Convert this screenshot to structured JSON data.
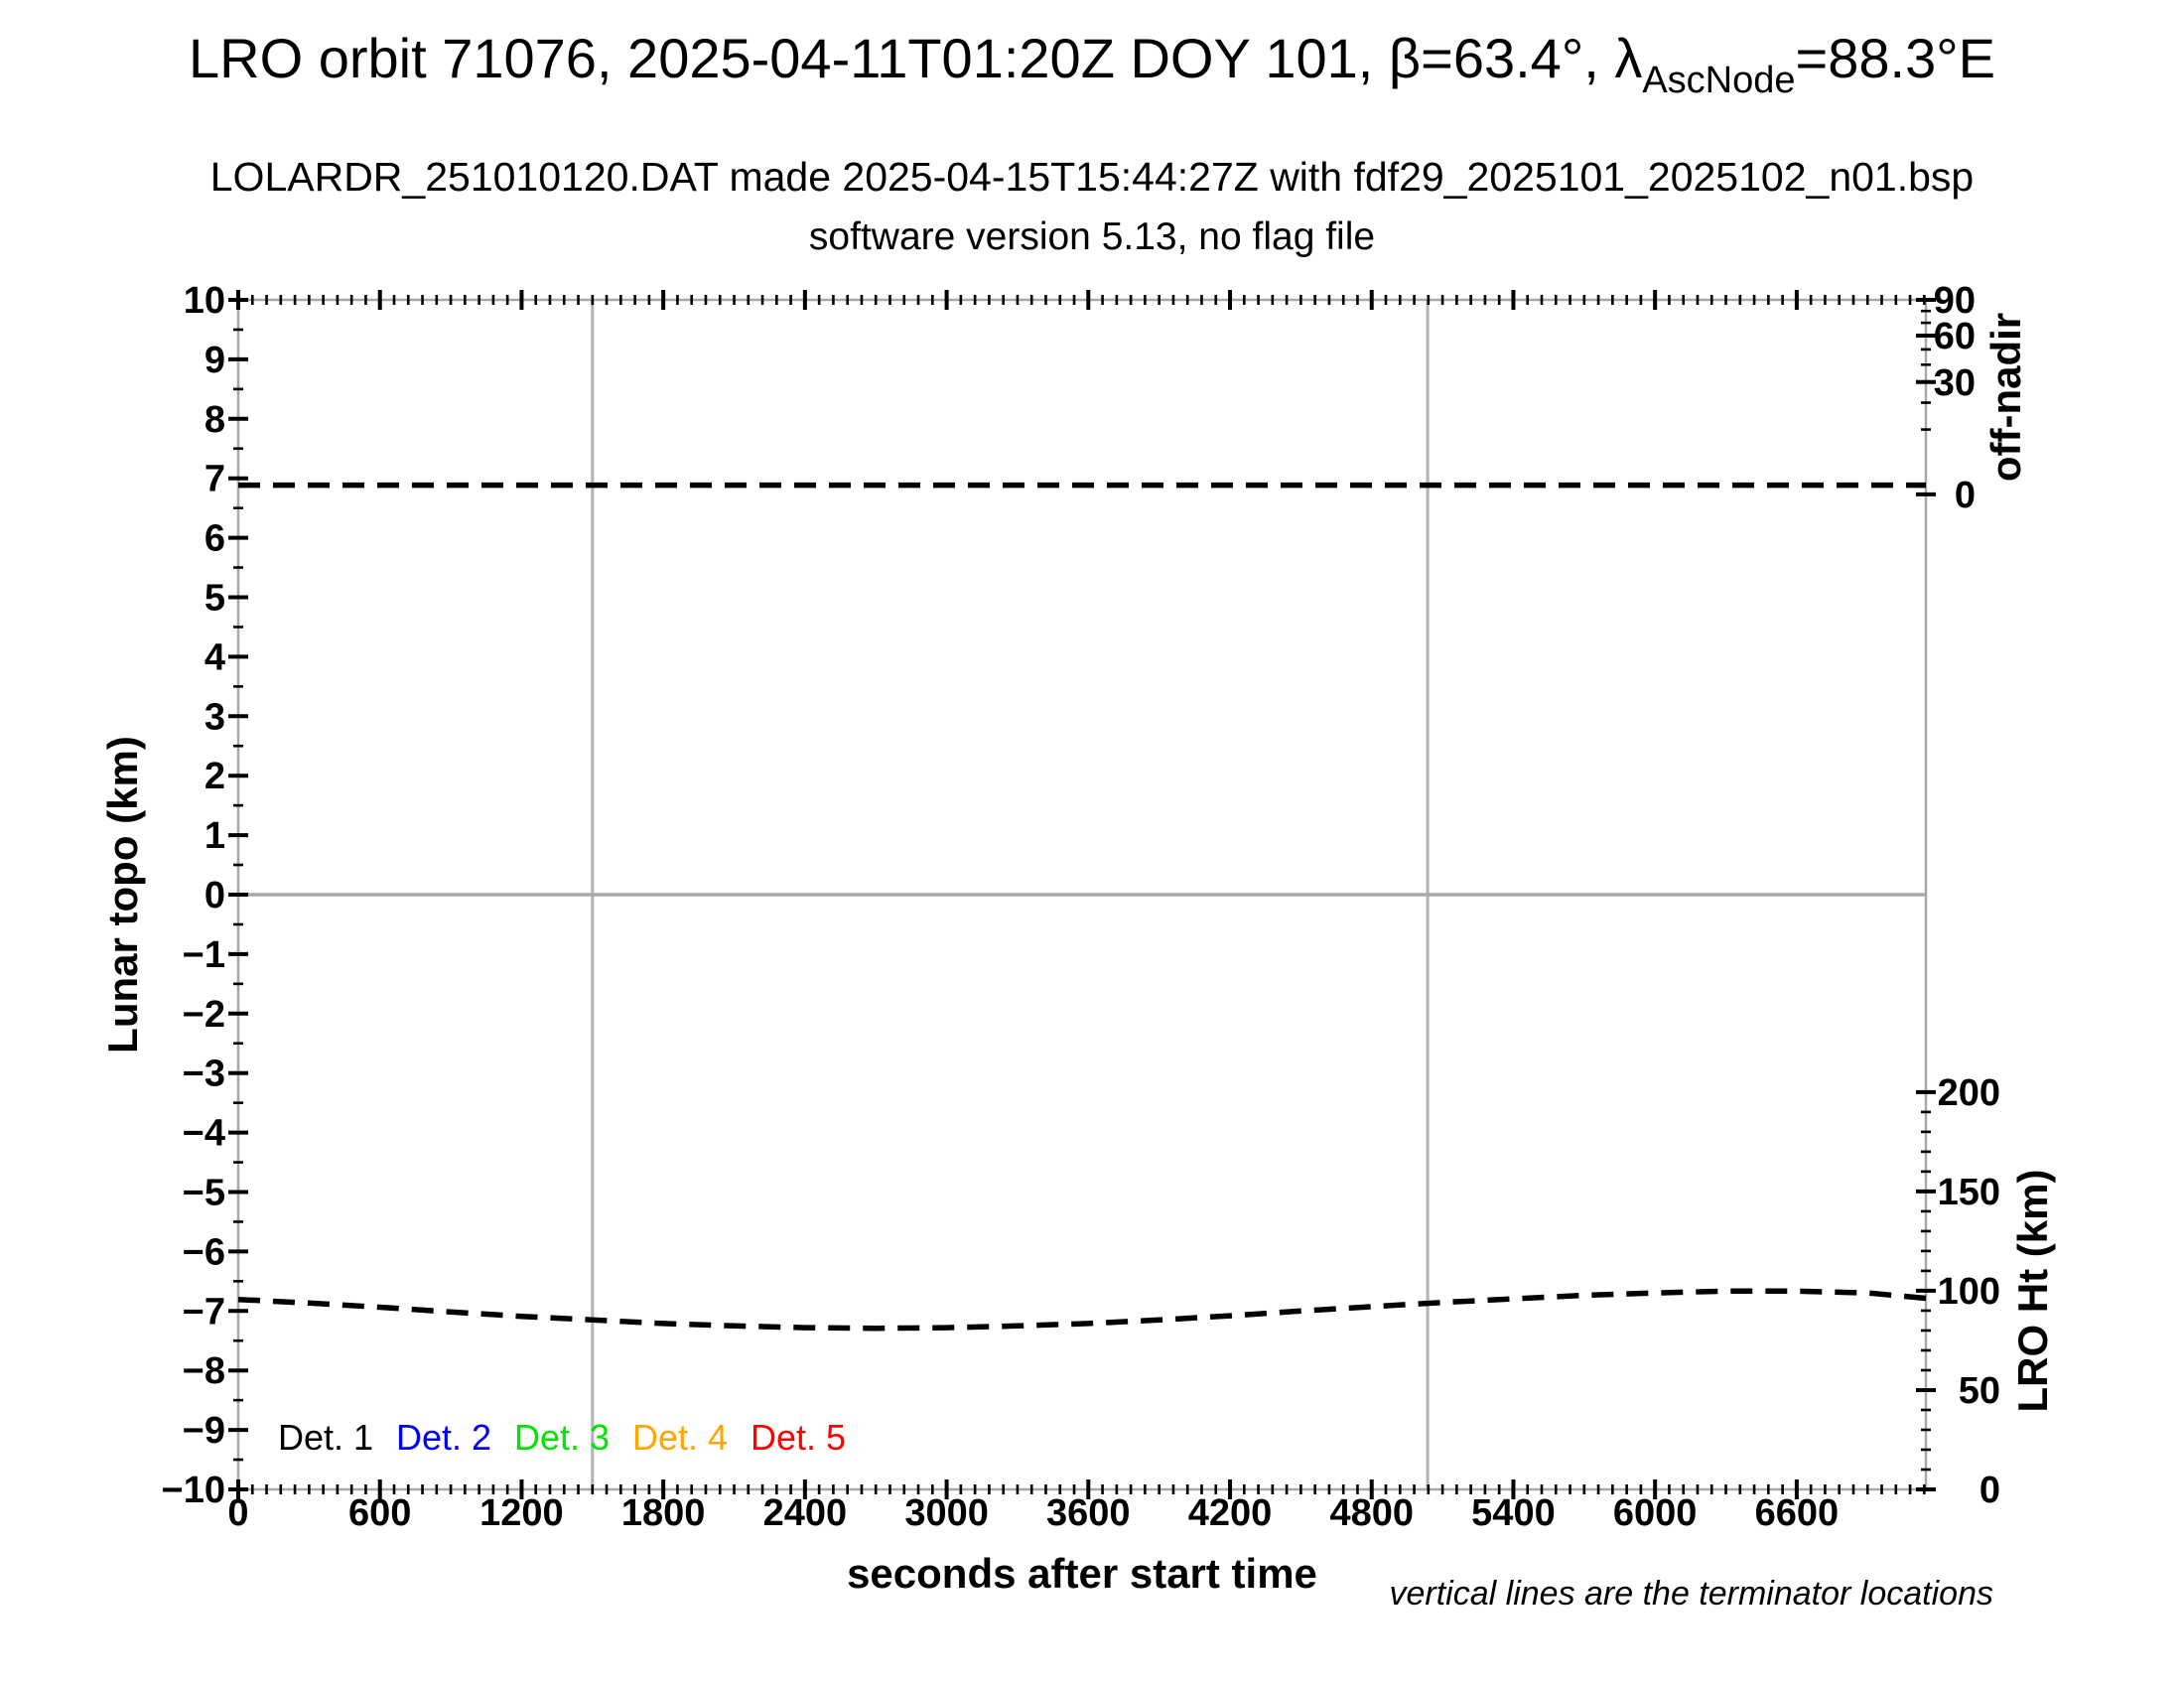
{
  "header": {
    "title_pre": "LRO orbit 71076, 2025-04-11T01:20Z DOY 101, β=63.4°, λ",
    "title_sub": "AscNode",
    "title_post": "=88.3°E",
    "subtitle": "LOLARDR_251010120.DAT made 2025-04-15T15:44:27Z with fdf29_2025101_2025102_n01.bsp",
    "subtitle2": "software version 5.13, no flag file"
  },
  "chart_data": {
    "type": "line",
    "title": "LRO orbit 71076, 2025-04-11T01:20Z DOY 101, β=63.4°, λAscNode=88.3°E",
    "xlabel": "seconds after start time",
    "x_axis": {
      "label": "seconds after start time",
      "range": [
        0,
        7147
      ],
      "major_ticks": [
        0,
        600,
        1200,
        1800,
        2400,
        3000,
        3600,
        4200,
        4800,
        5400,
        6000,
        6600
      ],
      "tick_labels": [
        "0",
        "600",
        "1200",
        "1800",
        "2400",
        "3000",
        "3600",
        "4200",
        "4800",
        "5400",
        "6000",
        "6600"
      ],
      "minor_tick_step": 60
    },
    "y_left_axis": {
      "label": "Lunar topo (km)",
      "range": [
        -10,
        10
      ],
      "major_tick_step": 1,
      "minor_tick_step": 0.5,
      "tick_labels": [
        "10",
        "9",
        "8",
        "7",
        "6",
        "5",
        "4",
        "3",
        "2",
        "1",
        "0",
        "−1",
        "−2",
        "−3",
        "−4",
        "−5",
        "−6",
        "−7",
        "−8",
        "−9",
        "−10"
      ]
    },
    "y_right_offnadir_axis": {
      "label": "off-nadir",
      "tick_values": [
        90,
        60,
        30,
        0
      ],
      "tick_labels": [
        "90",
        "60",
        "30",
        "0"
      ],
      "minor_tick_values": [
        10,
        20,
        40,
        50,
        70,
        80
      ],
      "scale": "sqrt",
      "topo_at_0deg": 6.73,
      "topo_at_90deg": 10
    },
    "y_right_height_axis": {
      "label": "LRO Ht (km)",
      "range": [
        0,
        200
      ],
      "tick_values": [
        200,
        150,
        100,
        50,
        0
      ],
      "tick_labels": [
        "200",
        "150",
        "100",
        "50",
        "0"
      ],
      "minor_tick_step": 10,
      "topo_at_0km": -10,
      "topo_at_200km": -3.32
    },
    "grid": "horizontal line at topo 0 and vertical terminator lines only",
    "zero_line_topo": 0,
    "terminator_lines_sec": [
      1500,
      5037
    ],
    "series": [
      {
        "name": "spacecraft off-nadir angle",
        "axis": "offnadir",
        "line_style": "dashed",
        "color": "#000000",
        "points": [
          [
            0,
            0.2
          ],
          [
            7147,
            0.2
          ]
        ]
      },
      {
        "name": "LRO height",
        "axis": "height",
        "line_style": "dashed",
        "color": "#000000",
        "points": [
          [
            0,
            95.6
          ],
          [
            300,
            93.8
          ],
          [
            600,
            91.7
          ],
          [
            900,
            89.3
          ],
          [
            1200,
            87.1
          ],
          [
            1500,
            85.3
          ],
          [
            1800,
            83.5
          ],
          [
            2100,
            82.3
          ],
          [
            2400,
            81.4
          ],
          [
            2700,
            81.1
          ],
          [
            3000,
            81.4
          ],
          [
            3300,
            82.3
          ],
          [
            3600,
            83.5
          ],
          [
            3900,
            85.3
          ],
          [
            4200,
            87.4
          ],
          [
            4500,
            89.8
          ],
          [
            4800,
            92.0
          ],
          [
            5100,
            94.1
          ],
          [
            5400,
            95.9
          ],
          [
            5700,
            97.7
          ],
          [
            6000,
            98.9
          ],
          [
            6300,
            99.8
          ],
          [
            6600,
            99.8
          ],
          [
            6900,
            98.9
          ],
          [
            7147,
            96.2
          ]
        ]
      }
    ],
    "legend": {
      "entries": [
        {
          "label": "Det. 1",
          "color": "#000000"
        },
        {
          "label": "Det. 2",
          "color": "#0000ff"
        },
        {
          "label": "Det. 3",
          "color": "#00e600"
        },
        {
          "label": "Det. 4",
          "color": "#ffa500"
        },
        {
          "label": "Det. 5",
          "color": "#ff0000"
        }
      ]
    },
    "footnote": "vertical lines are the terminator locations"
  }
}
